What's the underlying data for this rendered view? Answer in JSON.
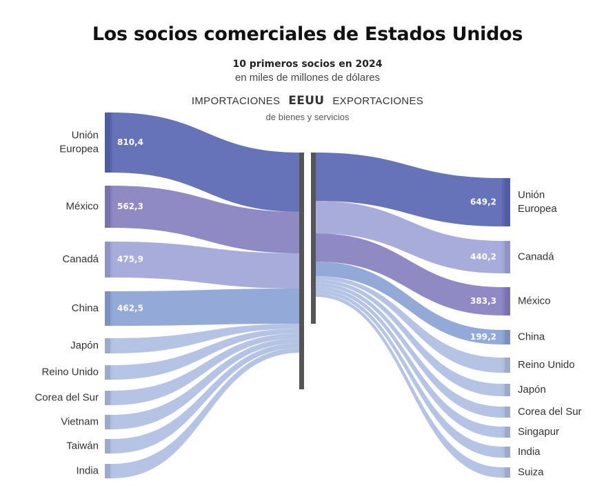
{
  "header": {
    "title": "Los socios comerciales de Estados Unidos",
    "subtitle": "10 primeros socios en 2024",
    "subtitle2": "en miles de millones de dólares",
    "imports_label": "IMPORTACIONES",
    "center_label": "EEUU",
    "exports_label": "EXPORTACIONES",
    "flow_note": "de bienes y servicios"
  },
  "colors": {
    "eu": "#5a68b4",
    "mexico": "#8780c0",
    "canada": "#a0a6d8",
    "china": "#8ba2d4",
    "others": "#afbfe2",
    "center_bar": "#555555"
  },
  "chart_data": {
    "type": "sankey",
    "unit": "miles de millones de dólares",
    "imports": [
      {
        "label": "Unión Europea",
        "value": 810.4,
        "value_label": "810,4"
      },
      {
        "label": "México",
        "value": 562.3,
        "value_label": "562,3"
      },
      {
        "label": "Canadá",
        "value": 475.9,
        "value_label": "475,9"
      },
      {
        "label": "China",
        "value": 462.5,
        "value_label": "462,5"
      },
      {
        "label": "Japón",
        "value": null
      },
      {
        "label": "Reino Unido",
        "value": null
      },
      {
        "label": "Corea del Sur",
        "value": null
      },
      {
        "label": "Vietnam",
        "value": null
      },
      {
        "label": "Taiwán",
        "value": null
      },
      {
        "label": "India",
        "value": null
      }
    ],
    "exports": [
      {
        "label": "Unión Europea",
        "value": 649.2,
        "value_label": "649,2"
      },
      {
        "label": "Canadá",
        "value": 440.2,
        "value_label": "440,2"
      },
      {
        "label": "México",
        "value": 383.3,
        "value_label": "383,3"
      },
      {
        "label": "China",
        "value": 199.2,
        "value_label": "199,2"
      },
      {
        "label": "Reino Unido",
        "value": null
      },
      {
        "label": "Japón",
        "value": null
      },
      {
        "label": "Corea del Sur",
        "value": null
      },
      {
        "label": "Singapur",
        "value": null
      },
      {
        "label": "India",
        "value": null
      },
      {
        "label": "Suiza",
        "value": null
      }
    ]
  }
}
